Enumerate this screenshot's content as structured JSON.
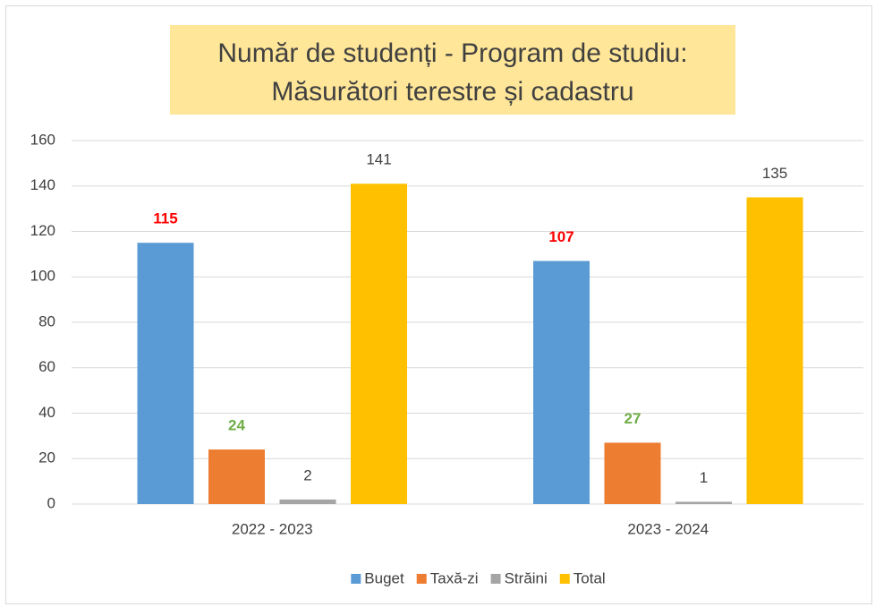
{
  "chart_data": {
    "type": "bar",
    "title": [
      "Număr de studenți - Program de studiu:",
      "Măsurători terestre și cadastru"
    ],
    "categories": [
      "2022 - 2023",
      "2023 - 2024"
    ],
    "series": [
      {
        "name": "Buget",
        "color": "#5b9bd5",
        "values": [
          115,
          107
        ],
        "label_color": "#ff0000",
        "label_bold": true
      },
      {
        "name": "Taxă-zi",
        "color": "#ed7d31",
        "values": [
          24,
          27
        ],
        "label_color": "#70ad47",
        "label_bold": true
      },
      {
        "name": "Străini",
        "color": "#a5a5a5",
        "values": [
          2,
          1
        ],
        "label_color": "#404040",
        "label_bold": false
      },
      {
        "name": "Total",
        "color": "#ffc000",
        "values": [
          141,
          135
        ],
        "label_color": "#404040",
        "label_bold": false
      }
    ],
    "ylim": [
      0,
      160
    ],
    "yticks": [
      0,
      20,
      40,
      60,
      80,
      100,
      120,
      140,
      160
    ],
    "grid": true,
    "legend": "bottom"
  }
}
